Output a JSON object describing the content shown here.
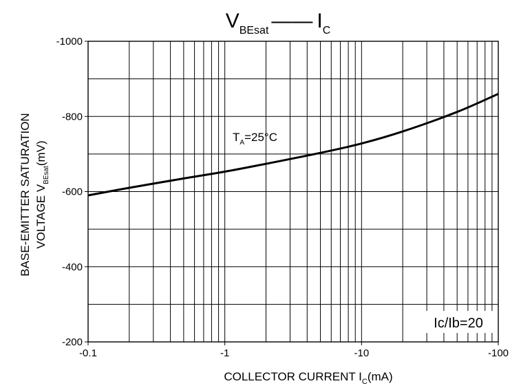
{
  "chart_data": {
    "type": "line",
    "title": {
      "main": "V",
      "main_sub": "BEsat",
      "right": "I",
      "right_sub": "C"
    },
    "xlabel": {
      "main": "COLLECTOR CURRENT I",
      "sub": "C",
      "tail": "(mA)"
    },
    "ylabel": {
      "line1": "BASE-EMITTER SATURATION",
      "line2_main": "VOLTAGE V",
      "line2_sub": "BEsat",
      "line2_tail": "(mV)"
    },
    "x_scale": "log",
    "xlim": [
      0.1,
      100
    ],
    "ylim": [
      -200,
      -1000
    ],
    "grid": true,
    "x_ticks": [
      {
        "value": 0.1,
        "label": "-0.1"
      },
      {
        "value": 1,
        "label": "-1"
      },
      {
        "value": 10,
        "label": "-10"
      },
      {
        "value": 100,
        "label": "-100"
      }
    ],
    "y_ticks": [
      {
        "value": -200,
        "label": "-200"
      },
      {
        "value": -400,
        "label": "-400"
      },
      {
        "value": -600,
        "label": "-600"
      },
      {
        "value": -800,
        "label": "-800"
      },
      {
        "value": -1000,
        "label": "-1000"
      }
    ],
    "series": [
      {
        "x": [
          0.1,
          0.2,
          0.5,
          1,
          2,
          5,
          10,
          20,
          50,
          100
        ],
        "y": [
          -590,
          -610,
          -635,
          -653,
          -674,
          -703,
          -728,
          -760,
          -812,
          -860
        ]
      }
    ],
    "annotations": {
      "temp": {
        "main": "T",
        "sub": "A",
        "tail": "=25°C"
      },
      "ratio": "Ic/Ib=20"
    }
  }
}
